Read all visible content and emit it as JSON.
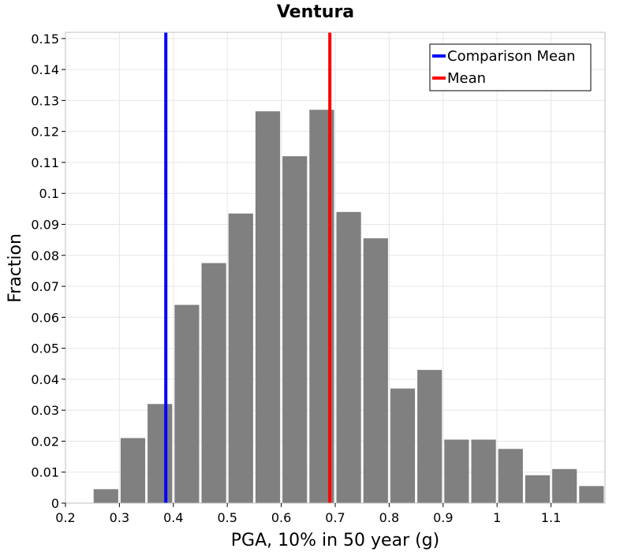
{
  "chart_data": {
    "type": "bar",
    "title": "Ventura",
    "xlabel": "PGA, 10% in 50 year (g)",
    "ylabel": "Fraction",
    "xlim": [
      0.2,
      1.2
    ],
    "ylim": [
      0,
      0.152
    ],
    "x_ticks": [
      "0.2",
      "0.3",
      "0.4",
      "0.5",
      "0.6",
      "0.7",
      "0.8",
      "0.9",
      "1",
      "1.1"
    ],
    "y_ticks": [
      "0",
      "0.01",
      "0.02",
      "0.03",
      "0.04",
      "0.05",
      "0.06",
      "0.07",
      "0.08",
      "0.09",
      "0.1",
      "0.11",
      "0.12",
      "0.13",
      "0.14",
      "0.15"
    ],
    "grid": true,
    "bar_color": "#808080",
    "bin_width": 0.05,
    "bins": [
      {
        "x": 0.275,
        "value": 0.0045
      },
      {
        "x": 0.325,
        "value": 0.021
      },
      {
        "x": 0.375,
        "value": 0.032
      },
      {
        "x": 0.425,
        "value": 0.064
      },
      {
        "x": 0.475,
        "value": 0.0775
      },
      {
        "x": 0.525,
        "value": 0.0935
      },
      {
        "x": 0.575,
        "value": 0.1265
      },
      {
        "x": 0.625,
        "value": 0.112
      },
      {
        "x": 0.675,
        "value": 0.127
      },
      {
        "x": 0.725,
        "value": 0.094
      },
      {
        "x": 0.775,
        "value": 0.0855
      },
      {
        "x": 0.825,
        "value": 0.037
      },
      {
        "x": 0.875,
        "value": 0.043
      },
      {
        "x": 0.925,
        "value": 0.0205
      },
      {
        "x": 0.975,
        "value": 0.0205
      },
      {
        "x": 1.025,
        "value": 0.0175
      },
      {
        "x": 1.075,
        "value": 0.009
      },
      {
        "x": 1.125,
        "value": 0.011
      },
      {
        "x": 1.175,
        "value": 0.0055
      }
    ],
    "reference_lines": [
      {
        "name": "Comparison Mean",
        "x": 0.386,
        "color": "#0000ff"
      },
      {
        "name": "Mean",
        "x": 0.69,
        "color": "#ff0000"
      }
    ],
    "legend_position": "top-right"
  }
}
